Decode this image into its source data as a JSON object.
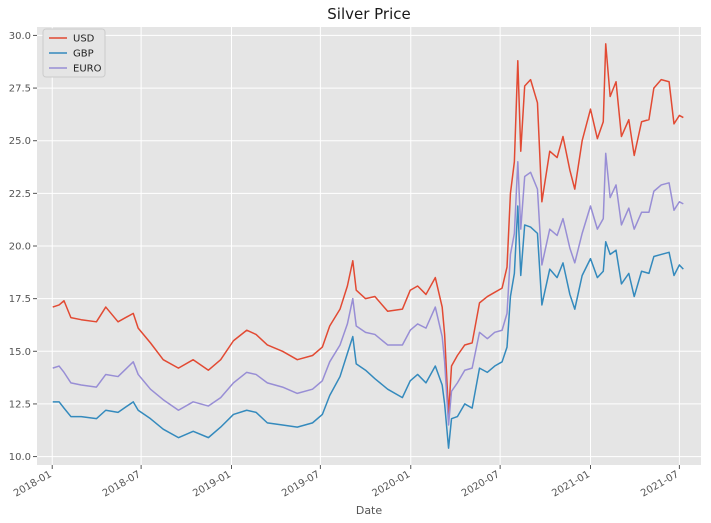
{
  "chart_data": {
    "type": "line",
    "title": "Silver Price",
    "xlabel": "Date",
    "ylabel": "",
    "x_type": "date",
    "xlim": [
      "2017-12-01",
      "2021-08-14"
    ],
    "ylim": [
      9.6,
      30.4
    ],
    "x_ticks": [
      "2018-01",
      "2018-07",
      "2019-01",
      "2019-07",
      "2020-01",
      "2020-07",
      "2021-01",
      "2021-07"
    ],
    "y_ticks": [
      10.0,
      12.5,
      15.0,
      17.5,
      20.0,
      22.5,
      25.0,
      27.5,
      30.0
    ],
    "grid": true,
    "legend_position": "top-left",
    "series": [
      {
        "name": "USD",
        "color": "#E24A33",
        "points": [
          [
            "2018-01-02",
            17.1
          ],
          [
            "2018-01-15",
            17.2
          ],
          [
            "2018-01-25",
            17.4
          ],
          [
            "2018-02-08",
            16.6
          ],
          [
            "2018-03-01",
            16.5
          ],
          [
            "2018-04-01",
            16.4
          ],
          [
            "2018-04-20",
            17.1
          ],
          [
            "2018-05-15",
            16.4
          ],
          [
            "2018-06-15",
            16.8
          ],
          [
            "2018-06-25",
            16.1
          ],
          [
            "2018-07-20",
            15.4
          ],
          [
            "2018-08-15",
            14.6
          ],
          [
            "2018-09-15",
            14.2
          ],
          [
            "2018-10-15",
            14.6
          ],
          [
            "2018-11-15",
            14.1
          ],
          [
            "2018-12-10",
            14.6
          ],
          [
            "2019-01-05",
            15.5
          ],
          [
            "2019-02-01",
            16.0
          ],
          [
            "2019-02-20",
            15.8
          ],
          [
            "2019-03-15",
            15.3
          ],
          [
            "2019-04-15",
            15.0
          ],
          [
            "2019-05-15",
            14.6
          ],
          [
            "2019-06-15",
            14.8
          ],
          [
            "2019-07-05",
            15.2
          ],
          [
            "2019-07-20",
            16.2
          ],
          [
            "2019-08-10",
            17.0
          ],
          [
            "2019-08-25",
            18.1
          ],
          [
            "2019-09-05",
            19.3
          ],
          [
            "2019-09-12",
            17.9
          ],
          [
            "2019-10-01",
            17.5
          ],
          [
            "2019-10-20",
            17.6
          ],
          [
            "2019-11-15",
            16.9
          ],
          [
            "2019-12-15",
            17.0
          ],
          [
            "2019-12-31",
            17.9
          ],
          [
            "2020-01-15",
            18.1
          ],
          [
            "2020-02-01",
            17.7
          ],
          [
            "2020-02-20",
            18.5
          ],
          [
            "2020-03-05",
            17.1
          ],
          [
            "2020-03-10",
            15.8
          ],
          [
            "2020-03-18",
            12.0
          ],
          [
            "2020-03-24",
            14.3
          ],
          [
            "2020-04-05",
            14.8
          ],
          [
            "2020-04-20",
            15.3
          ],
          [
            "2020-05-05",
            15.4
          ],
          [
            "2020-05-20",
            17.3
          ],
          [
            "2020-06-05",
            17.6
          ],
          [
            "2020-06-20",
            17.8
          ],
          [
            "2020-07-05",
            18.0
          ],
          [
            "2020-07-15",
            19.0
          ],
          [
            "2020-07-22",
            22.5
          ],
          [
            "2020-07-30",
            24.0
          ],
          [
            "2020-08-06",
            28.8
          ],
          [
            "2020-08-12",
            24.5
          ],
          [
            "2020-08-20",
            27.6
          ],
          [
            "2020-09-01",
            27.9
          ],
          [
            "2020-09-15",
            26.8
          ],
          [
            "2020-09-24",
            22.1
          ],
          [
            "2020-10-10",
            24.5
          ],
          [
            "2020-10-25",
            24.2
          ],
          [
            "2020-11-06",
            25.2
          ],
          [
            "2020-11-20",
            23.6
          ],
          [
            "2020-11-30",
            22.7
          ],
          [
            "2020-12-15",
            25.0
          ],
          [
            "2021-01-01",
            26.5
          ],
          [
            "2021-01-15",
            25.1
          ],
          [
            "2021-01-27",
            25.9
          ],
          [
            "2021-02-01",
            29.6
          ],
          [
            "2021-02-10",
            27.1
          ],
          [
            "2021-02-22",
            27.8
          ],
          [
            "2021-03-05",
            25.2
          ],
          [
            "2021-03-20",
            26.0
          ],
          [
            "2021-03-31",
            24.3
          ],
          [
            "2021-04-15",
            25.9
          ],
          [
            "2021-04-30",
            26.0
          ],
          [
            "2021-05-10",
            27.5
          ],
          [
            "2021-05-25",
            27.9
          ],
          [
            "2021-06-10",
            27.8
          ],
          [
            "2021-06-20",
            25.8
          ],
          [
            "2021-07-01",
            26.2
          ],
          [
            "2021-07-09",
            26.1
          ]
        ]
      },
      {
        "name": "GBP",
        "color": "#348ABD",
        "points": [
          [
            "2018-01-02",
            12.6
          ],
          [
            "2018-01-15",
            12.6
          ],
          [
            "2018-01-25",
            12.3
          ],
          [
            "2018-02-08",
            11.9
          ],
          [
            "2018-03-01",
            11.9
          ],
          [
            "2018-04-01",
            11.8
          ],
          [
            "2018-04-20",
            12.2
          ],
          [
            "2018-05-15",
            12.1
          ],
          [
            "2018-06-15",
            12.6
          ],
          [
            "2018-06-25",
            12.2
          ],
          [
            "2018-07-20",
            11.8
          ],
          [
            "2018-08-15",
            11.3
          ],
          [
            "2018-09-15",
            10.9
          ],
          [
            "2018-10-15",
            11.2
          ],
          [
            "2018-11-15",
            10.9
          ],
          [
            "2018-12-10",
            11.4
          ],
          [
            "2019-01-05",
            12.0
          ],
          [
            "2019-02-01",
            12.2
          ],
          [
            "2019-02-20",
            12.1
          ],
          [
            "2019-03-15",
            11.6
          ],
          [
            "2019-04-15",
            11.5
          ],
          [
            "2019-05-15",
            11.4
          ],
          [
            "2019-06-15",
            11.6
          ],
          [
            "2019-07-05",
            12.0
          ],
          [
            "2019-07-20",
            12.9
          ],
          [
            "2019-08-10",
            13.8
          ],
          [
            "2019-08-25",
            14.9
          ],
          [
            "2019-09-05",
            15.7
          ],
          [
            "2019-09-12",
            14.4
          ],
          [
            "2019-10-01",
            14.1
          ],
          [
            "2019-10-20",
            13.7
          ],
          [
            "2019-11-15",
            13.2
          ],
          [
            "2019-12-15",
            12.8
          ],
          [
            "2019-12-31",
            13.6
          ],
          [
            "2020-01-15",
            13.9
          ],
          [
            "2020-02-01",
            13.5
          ],
          [
            "2020-02-20",
            14.3
          ],
          [
            "2020-03-05",
            13.4
          ],
          [
            "2020-03-10",
            12.5
          ],
          [
            "2020-03-18",
            10.4
          ],
          [
            "2020-03-24",
            11.8
          ],
          [
            "2020-04-05",
            11.9
          ],
          [
            "2020-04-20",
            12.5
          ],
          [
            "2020-05-05",
            12.3
          ],
          [
            "2020-05-20",
            14.2
          ],
          [
            "2020-06-05",
            14.0
          ],
          [
            "2020-06-20",
            14.3
          ],
          [
            "2020-07-05",
            14.5
          ],
          [
            "2020-07-15",
            15.2
          ],
          [
            "2020-07-22",
            17.6
          ],
          [
            "2020-07-30",
            18.7
          ],
          [
            "2020-08-06",
            21.9
          ],
          [
            "2020-08-12",
            18.6
          ],
          [
            "2020-08-20",
            21.0
          ],
          [
            "2020-09-01",
            20.9
          ],
          [
            "2020-09-15",
            20.6
          ],
          [
            "2020-09-24",
            17.2
          ],
          [
            "2020-10-10",
            18.9
          ],
          [
            "2020-10-25",
            18.5
          ],
          [
            "2020-11-06",
            19.2
          ],
          [
            "2020-11-20",
            17.7
          ],
          [
            "2020-11-30",
            17.0
          ],
          [
            "2020-12-15",
            18.6
          ],
          [
            "2021-01-01",
            19.4
          ],
          [
            "2021-01-15",
            18.5
          ],
          [
            "2021-01-27",
            18.8
          ],
          [
            "2021-02-01",
            20.2
          ],
          [
            "2021-02-10",
            19.6
          ],
          [
            "2021-02-22",
            19.8
          ],
          [
            "2021-03-05",
            18.2
          ],
          [
            "2021-03-20",
            18.7
          ],
          [
            "2021-03-31",
            17.6
          ],
          [
            "2021-04-15",
            18.8
          ],
          [
            "2021-04-30",
            18.7
          ],
          [
            "2021-05-10",
            19.5
          ],
          [
            "2021-05-25",
            19.6
          ],
          [
            "2021-06-10",
            19.7
          ],
          [
            "2021-06-20",
            18.6
          ],
          [
            "2021-07-01",
            19.1
          ],
          [
            "2021-07-09",
            18.9
          ]
        ]
      },
      {
        "name": "EURO",
        "color": "#988ED5",
        "points": [
          [
            "2018-01-02",
            14.2
          ],
          [
            "2018-01-15",
            14.3
          ],
          [
            "2018-01-25",
            14.0
          ],
          [
            "2018-02-08",
            13.5
          ],
          [
            "2018-03-01",
            13.4
          ],
          [
            "2018-04-01",
            13.3
          ],
          [
            "2018-04-20",
            13.9
          ],
          [
            "2018-05-15",
            13.8
          ],
          [
            "2018-06-15",
            14.5
          ],
          [
            "2018-06-25",
            13.9
          ],
          [
            "2018-07-20",
            13.2
          ],
          [
            "2018-08-15",
            12.7
          ],
          [
            "2018-09-15",
            12.2
          ],
          [
            "2018-10-15",
            12.6
          ],
          [
            "2018-11-15",
            12.4
          ],
          [
            "2018-12-10",
            12.8
          ],
          [
            "2019-01-05",
            13.5
          ],
          [
            "2019-02-01",
            14.0
          ],
          [
            "2019-02-20",
            13.9
          ],
          [
            "2019-03-15",
            13.5
          ],
          [
            "2019-04-15",
            13.3
          ],
          [
            "2019-05-15",
            13.0
          ],
          [
            "2019-06-15",
            13.2
          ],
          [
            "2019-07-05",
            13.6
          ],
          [
            "2019-07-20",
            14.5
          ],
          [
            "2019-08-10",
            15.3
          ],
          [
            "2019-08-25",
            16.3
          ],
          [
            "2019-09-05",
            17.5
          ],
          [
            "2019-09-12",
            16.2
          ],
          [
            "2019-10-01",
            15.9
          ],
          [
            "2019-10-20",
            15.8
          ],
          [
            "2019-11-15",
            15.3
          ],
          [
            "2019-12-15",
            15.3
          ],
          [
            "2019-12-31",
            16.0
          ],
          [
            "2020-01-15",
            16.3
          ],
          [
            "2020-02-01",
            16.1
          ],
          [
            "2020-02-20",
            17.1
          ],
          [
            "2020-03-05",
            15.7
          ],
          [
            "2020-03-10",
            14.5
          ],
          [
            "2020-03-18",
            11.5
          ],
          [
            "2020-03-24",
            13.1
          ],
          [
            "2020-04-05",
            13.5
          ],
          [
            "2020-04-20",
            14.1
          ],
          [
            "2020-05-05",
            14.2
          ],
          [
            "2020-05-20",
            15.9
          ],
          [
            "2020-06-05",
            15.6
          ],
          [
            "2020-06-20",
            15.9
          ],
          [
            "2020-07-05",
            16.0
          ],
          [
            "2020-07-15",
            16.8
          ],
          [
            "2020-07-22",
            19.6
          ],
          [
            "2020-07-30",
            20.6
          ],
          [
            "2020-08-06",
            24.0
          ],
          [
            "2020-08-12",
            20.8
          ],
          [
            "2020-08-20",
            23.3
          ],
          [
            "2020-09-01",
            23.5
          ],
          [
            "2020-09-15",
            22.7
          ],
          [
            "2020-09-24",
            19.1
          ],
          [
            "2020-10-10",
            20.8
          ],
          [
            "2020-10-25",
            20.5
          ],
          [
            "2020-11-06",
            21.3
          ],
          [
            "2020-11-20",
            19.9
          ],
          [
            "2020-11-30",
            19.2
          ],
          [
            "2020-12-15",
            20.6
          ],
          [
            "2021-01-01",
            21.9
          ],
          [
            "2021-01-15",
            20.8
          ],
          [
            "2021-01-27",
            21.3
          ],
          [
            "2021-02-01",
            24.4
          ],
          [
            "2021-02-10",
            22.3
          ],
          [
            "2021-02-22",
            22.9
          ],
          [
            "2021-03-05",
            21.0
          ],
          [
            "2021-03-20",
            21.8
          ],
          [
            "2021-03-31",
            20.8
          ],
          [
            "2021-04-15",
            21.6
          ],
          [
            "2021-04-30",
            21.6
          ],
          [
            "2021-05-10",
            22.6
          ],
          [
            "2021-05-25",
            22.9
          ],
          [
            "2021-06-10",
            23.0
          ],
          [
            "2021-06-20",
            21.7
          ],
          [
            "2021-07-01",
            22.1
          ],
          [
            "2021-07-09",
            22.0
          ]
        ]
      }
    ]
  }
}
